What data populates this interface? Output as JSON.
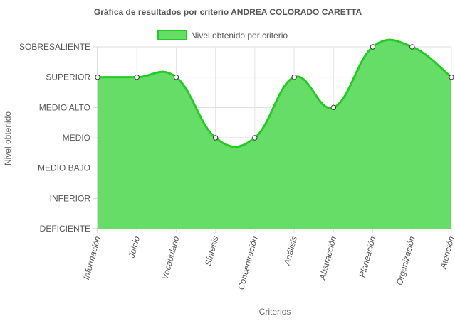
{
  "chart_data": {
    "type": "area",
    "title": "Gráfica de resultados por criterio ANDREA COLORADO CARETTA",
    "xlabel": "Criterios",
    "ylabel": "Nivel obtenido",
    "levels": [
      "DEFICIENTE",
      "INFERIOR",
      "MEDIO BAJO",
      "MEDIO",
      "MEDIO ALTO",
      "SUPERIOR",
      "SOBRESALIENTE"
    ],
    "categories": [
      "Información",
      "Juicio",
      "Vocabulario",
      "Síntesis",
      "Concentración",
      "Análisis",
      "Abstracción",
      "Planeación",
      "Organización",
      "Atención"
    ],
    "series": [
      {
        "name": "Nivel obtenido por criterio",
        "values": [
          "SUPERIOR",
          "SUPERIOR",
          "SUPERIOR",
          "MEDIO",
          "MEDIO",
          "SUPERIOR",
          "MEDIO ALTO",
          "SOBRESALIENTE",
          "SOBRESALIENTE",
          "SUPERIOR"
        ],
        "fill": "#66dd66",
        "stroke": "#22cc22"
      }
    ],
    "legend_position": "top",
    "grid": true
  }
}
